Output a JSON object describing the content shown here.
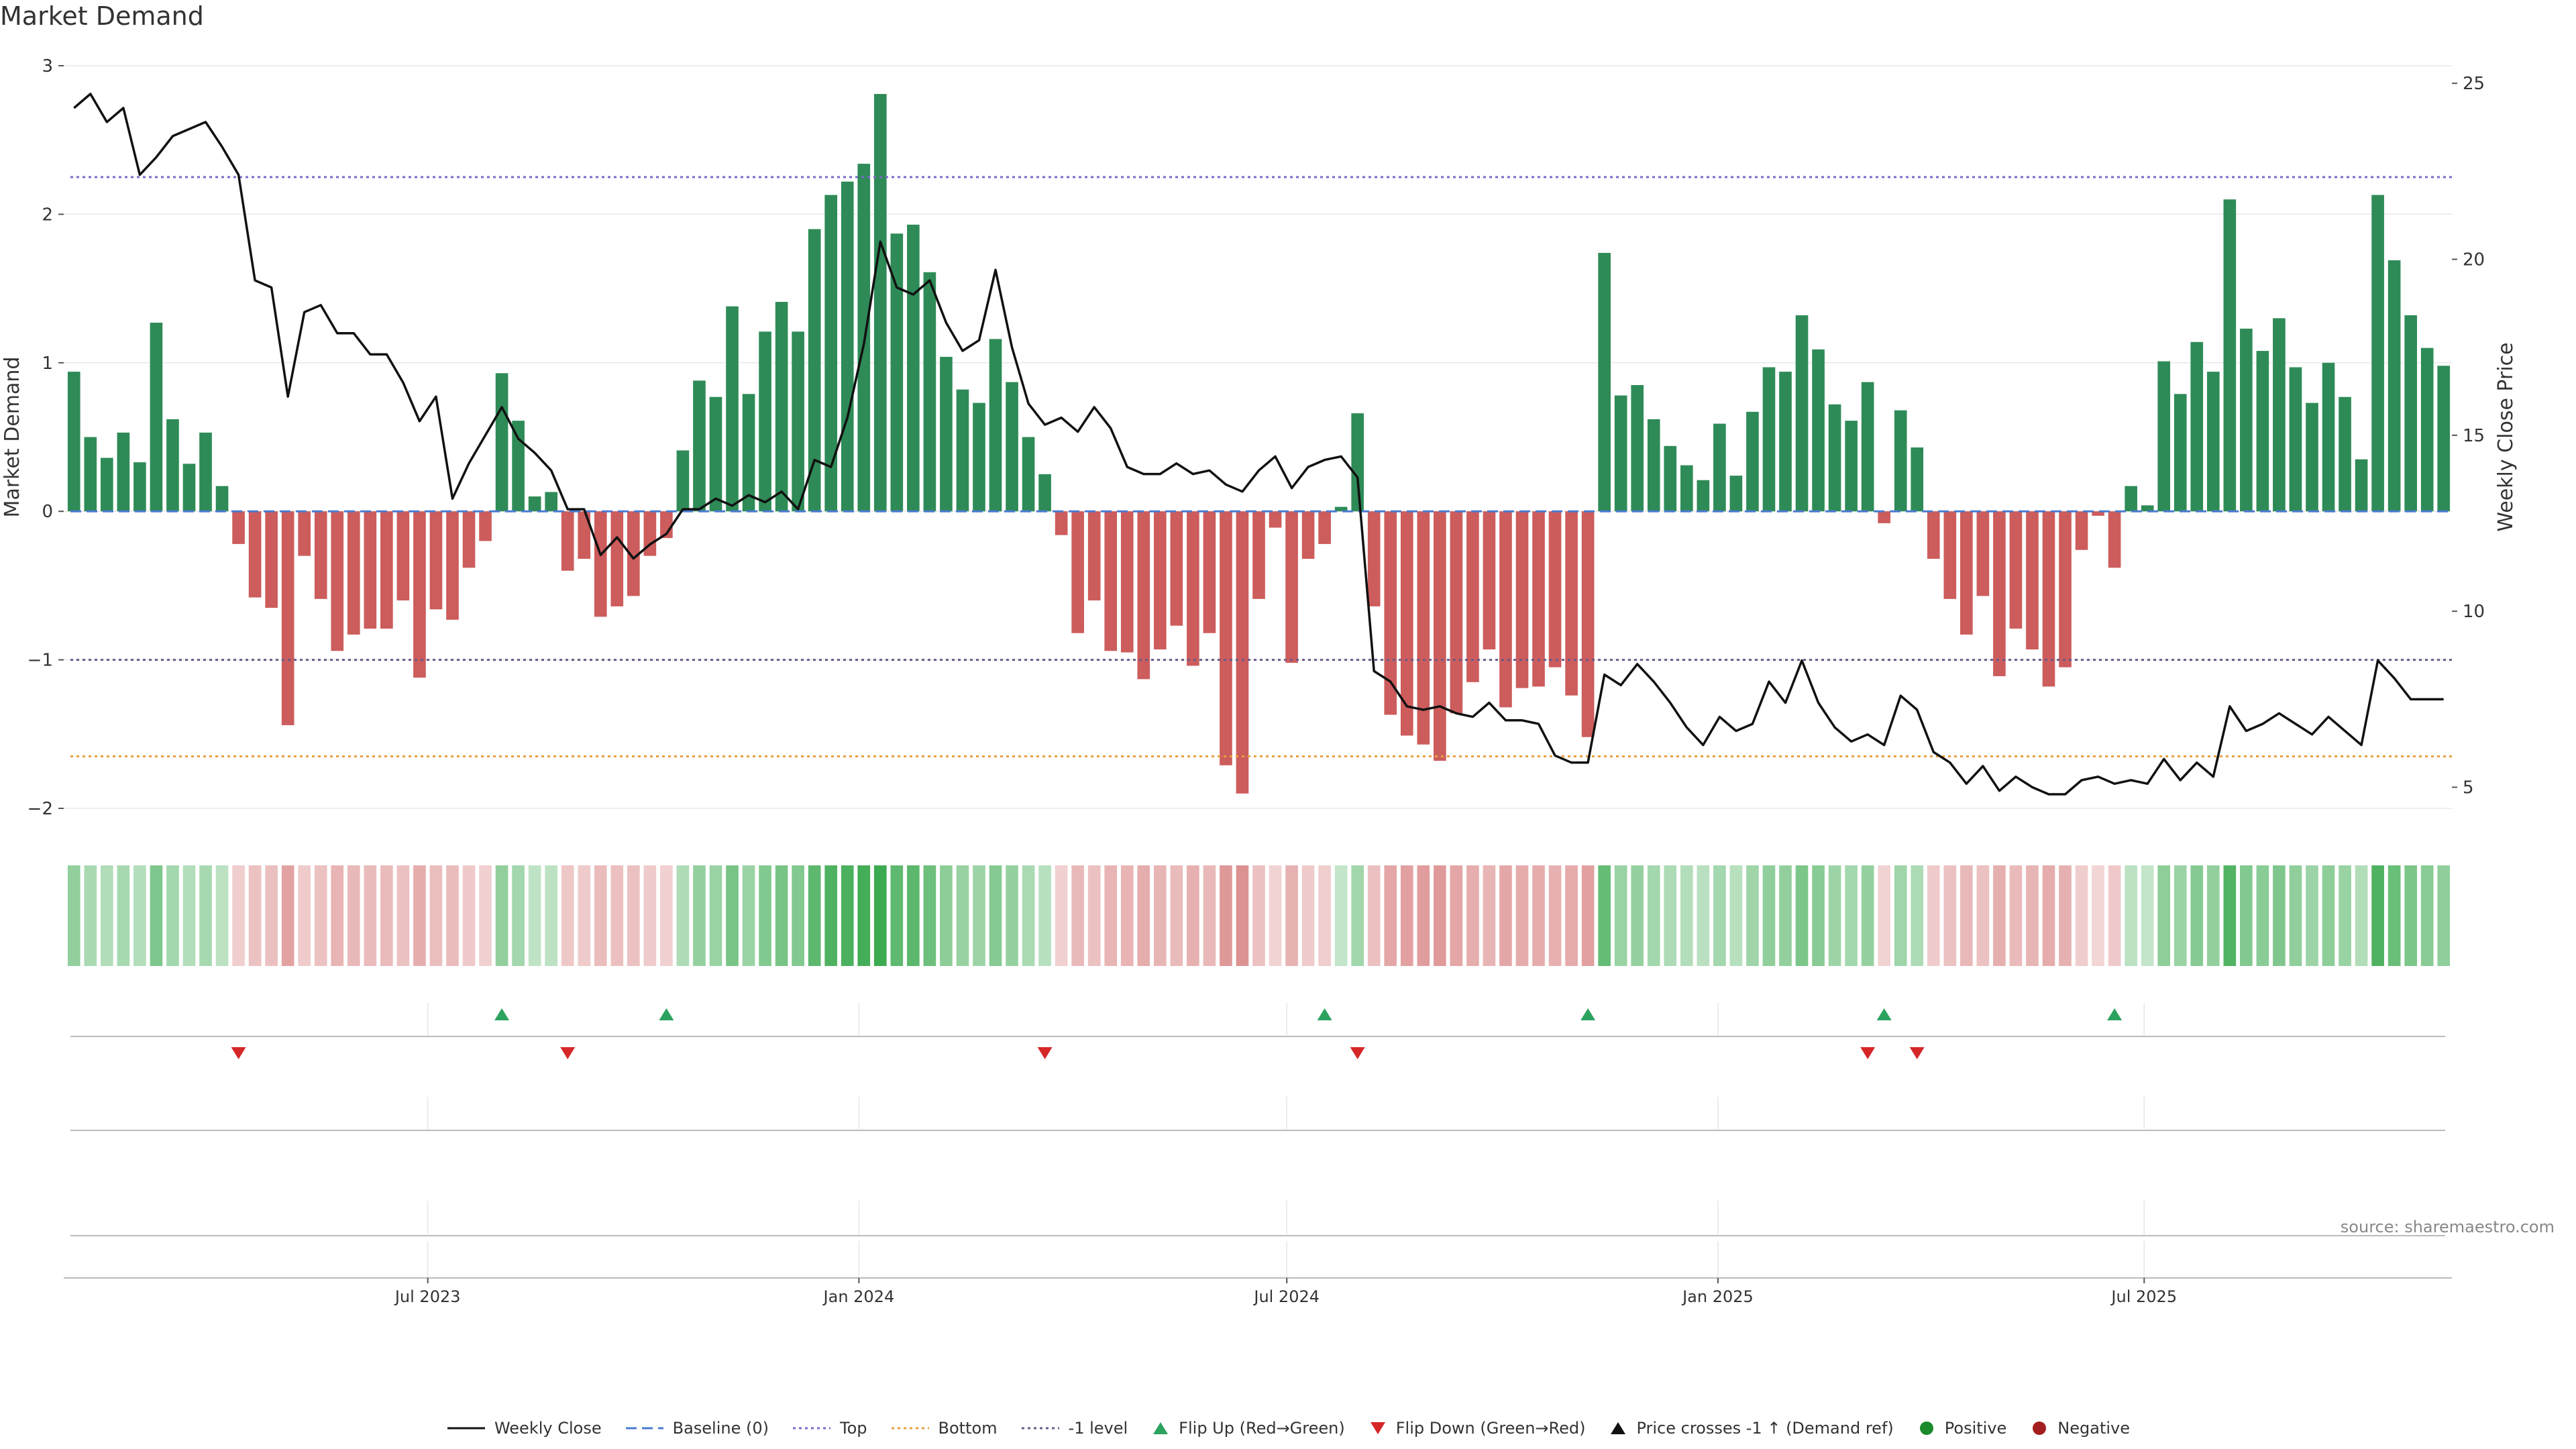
{
  "title": "Market Demand",
  "source": "source: sharemaestro.com",
  "colors": {
    "positive_bar": "#2e8b57",
    "negative_bar": "#cd5c5c",
    "price_line": "#111111",
    "top_line": "#7b68c8",
    "bottom_line": "#e8a040",
    "minus1_line": "#6a5a8a",
    "baseline": "#4a7bd0",
    "flip_up": "#2ca25f",
    "flip_down": "#d62728",
    "grid": "#e8e8e8"
  },
  "chart_data": {
    "type": "bar+line",
    "title": "Market Demand",
    "ylabel_left": "Market Demand",
    "ylabel_right": "Weekly Close Price",
    "ylim_left": [
      -2.0,
      3.0
    ],
    "ylim_right": [
      4.4,
      25.5
    ],
    "yticks_left": [
      -2,
      -1,
      0,
      1,
      2,
      3
    ],
    "yticks_left_labels": [
      "−2",
      "−1",
      "0",
      "1",
      "2",
      "3"
    ],
    "yticks_right": [
      5,
      10,
      15,
      20,
      25
    ],
    "yticks_right_labels": [
      "5",
      "10",
      "15",
      "20",
      "25"
    ],
    "x_tick_labels": [
      "Jul 2023",
      "Jan 2024",
      "Jul 2024",
      "Jan 2025",
      "Jul 2025"
    ],
    "x_tick_weeks": [
      21.5,
      47.7,
      73.7,
      99.9,
      125.8
    ],
    "reference_lines": {
      "top": 2.25,
      "bottom": -1.65,
      "minus1": -1.0,
      "baseline": 0
    },
    "demand": [
      0.94,
      0.5,
      0.36,
      0.53,
      0.33,
      1.27,
      0.62,
      0.32,
      0.53,
      0.17,
      -0.22,
      -0.58,
      -0.65,
      -1.44,
      -0.3,
      -0.59,
      -0.94,
      -0.83,
      -0.79,
      -0.79,
      -0.6,
      -1.12,
      -0.66,
      -0.73,
      -0.38,
      -0.2,
      0.93,
      0.61,
      0.1,
      0.13,
      -0.4,
      -0.32,
      -0.71,
      -0.64,
      -0.57,
      -0.3,
      -0.18,
      0.41,
      0.88,
      0.77,
      1.38,
      0.79,
      1.21,
      1.41,
      1.21,
      1.9,
      2.13,
      2.22,
      2.34,
      2.81,
      1.87,
      1.93,
      1.61,
      1.04,
      0.82,
      0.73,
      1.16,
      0.87,
      0.5,
      0.25,
      -0.16,
      -0.82,
      -0.6,
      -0.94,
      -0.95,
      -1.13,
      -0.93,
      -0.77,
      -1.04,
      -0.82,
      -1.71,
      -1.9,
      -0.59,
      -0.11,
      -1.02,
      -0.32,
      -0.22,
      0.03,
      0.66,
      -0.64,
      -1.37,
      -1.51,
      -1.57,
      -1.68,
      -1.36,
      -1.15,
      -0.93,
      -1.32,
      -1.19,
      -1.18,
      -1.05,
      -1.24,
      -1.52,
      1.74,
      0.78,
      0.85,
      0.62,
      0.44,
      0.31,
      0.21,
      0.59,
      0.24,
      0.67,
      0.97,
      0.94,
      1.32,
      1.09,
      0.72,
      0.61,
      0.87,
      -0.08,
      0.68,
      0.43,
      -0.32,
      -0.59,
      -0.83,
      -0.57,
      -1.11,
      -0.79,
      -0.93,
      -1.18,
      -1.05,
      -0.26,
      -0.03,
      -0.38,
      0.17,
      0.04,
      1.01,
      0.79,
      1.14,
      0.94,
      2.1,
      1.23,
      1.08,
      1.3,
      0.97,
      0.73,
      1.0,
      0.77,
      0.35,
      2.13,
      1.69,
      1.32,
      1.1,
      0.98
    ],
    "close": [
      24.3,
      24.7,
      23.9,
      24.3,
      22.4,
      22.9,
      23.5,
      23.7,
      23.9,
      23.2,
      22.4,
      19.4,
      19.2,
      16.1,
      18.5,
      18.7,
      17.9,
      17.9,
      17.3,
      17.3,
      16.5,
      15.4,
      16.1,
      13.2,
      14.2,
      15.0,
      15.8,
      14.9,
      14.5,
      14.0,
      12.9,
      12.9,
      11.6,
      12.1,
      11.5,
      11.9,
      12.2,
      12.9,
      12.9,
      13.2,
      13.0,
      13.3,
      13.1,
      13.4,
      12.9,
      14.3,
      14.1,
      15.5,
      17.6,
      20.5,
      19.2,
      19.0,
      19.4,
      18.2,
      17.4,
      17.7,
      19.7,
      17.5,
      15.9,
      15.3,
      15.5,
      15.1,
      15.8,
      15.2,
      14.1,
      13.9,
      13.9,
      14.2,
      13.9,
      14.0,
      13.6,
      13.4,
      14.0,
      14.4,
      13.5,
      14.1,
      14.3,
      14.4,
      13.8,
      8.3,
      8.0,
      7.3,
      7.2,
      7.3,
      7.1,
      7.0,
      7.4,
      6.9,
      6.9,
      6.8,
      5.9,
      5.7,
      5.7,
      8.2,
      7.9,
      8.5,
      8.0,
      7.4,
      6.7,
      6.2,
      7.0,
      6.6,
      6.8,
      8.0,
      7.4,
      8.6,
      7.4,
      6.7,
      6.3,
      6.5,
      6.2,
      7.6,
      7.2,
      6.0,
      5.7,
      5.1,
      5.6,
      4.9,
      5.3,
      5.0,
      4.8,
      4.8,
      5.2,
      5.3,
      5.1,
      5.2,
      5.1,
      5.8,
      5.2,
      5.7,
      5.3,
      7.3,
      6.6,
      6.8,
      7.1,
      6.8,
      6.5,
      7.0,
      6.6,
      6.2,
      8.6,
      8.1,
      7.5,
      7.5,
      7.5
    ],
    "flip_up_weeks": [
      26,
      36,
      76,
      92,
      110,
      124
    ],
    "flip_down_weeks": [
      10,
      30,
      59,
      78,
      109,
      112
    ],
    "legend": [
      "Weekly Close",
      "Baseline (0)",
      "Top",
      "Bottom",
      "-1 level",
      "Flip Up (Red→Green)",
      "Flip Down (Green→Red)",
      "Price crosses -1 ↑ (Demand ref)",
      "Positive",
      "Negative"
    ]
  }
}
